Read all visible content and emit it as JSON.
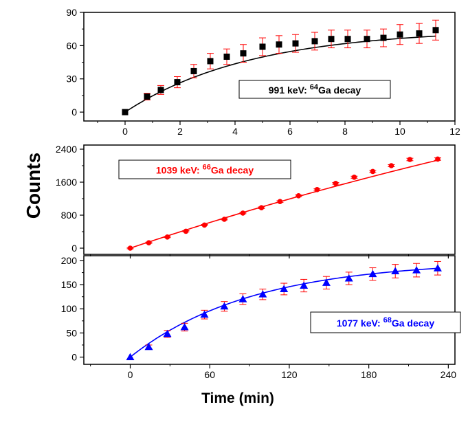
{
  "figure": {
    "ylabel": "Counts",
    "xlabel": "Time (min)"
  },
  "chart_data": [
    {
      "type": "scatter",
      "title": "",
      "legend": {
        "energy": "991 keV:",
        "mass": "64",
        "rest": "Ga decay",
        "color": "#000000",
        "placement": "middle-right"
      },
      "marker": "square",
      "marker_color": "#000000",
      "errorbar_color": "#ff0000",
      "fit_color": "#000000",
      "xlim": [
        -1.5,
        12
      ],
      "ylim": [
        -8,
        90
      ],
      "xticks": [
        0,
        2,
        4,
        6,
        8,
        10,
        12
      ],
      "yticks": [
        0,
        30,
        60,
        90
      ],
      "show_x_tick_labels": true,
      "series": [
        {
          "x": [
            0,
            0.8,
            1.3,
            1.9,
            2.5,
            3.1,
            3.7,
            4.3,
            5.0,
            5.6,
            6.2,
            6.9,
            7.5,
            8.1,
            8.8,
            9.4,
            10.0,
            10.7,
            11.3
          ],
          "y": [
            0,
            14,
            20,
            27,
            37,
            46,
            50,
            53,
            59,
            61,
            62,
            64,
            66,
            66,
            66,
            67,
            70,
            71,
            74
          ],
          "err": [
            0,
            3,
            4,
            5,
            6,
            7,
            7,
            8,
            8,
            8,
            8,
            8,
            8,
            8,
            8,
            8,
            9,
            9,
            9
          ]
        }
      ],
      "fit": {
        "A": 75,
        "tau": 4.6
      }
    },
    {
      "type": "scatter",
      "title": "",
      "legend": {
        "energy": "1039  keV:",
        "mass": "66",
        "rest": "Ga decay",
        "color": "#ff0000",
        "placement": "top-left"
      },
      "marker": "circle",
      "marker_color": "#ff0000",
      "errorbar_color": "#ff0000",
      "fit_color": "#ff0000",
      "xlim": [
        -35,
        245
      ],
      "ylim": [
        -150,
        2500
      ],
      "xticks": [
        0,
        60,
        120,
        180,
        240
      ],
      "yticks": [
        0,
        800,
        1600,
        2400
      ],
      "show_x_tick_labels": false,
      "series": [
        {
          "x": [
            0,
            14,
            28,
            42,
            56,
            71,
            85,
            99,
            113,
            127,
            141,
            155,
            169,
            183,
            197,
            211,
            232
          ],
          "y": [
            0,
            130,
            270,
            410,
            560,
            700,
            850,
            980,
            1130,
            1270,
            1420,
            1570,
            1720,
            1860,
            2000,
            2150,
            2160
          ],
          "err": [
            15,
            15,
            15,
            15,
            15,
            15,
            15,
            20,
            20,
            20,
            20,
            20,
            25,
            25,
            25,
            30,
            30
          ]
        }
      ],
      "fit": {
        "A": 7560,
        "tau": 700
      }
    },
    {
      "type": "scatter",
      "title": "",
      "legend": {
        "energy": "1077  keV:",
        "mass": "68",
        "rest": "Ga decay",
        "color": "#0000ff",
        "placement": "middle-right"
      },
      "marker": "triangle",
      "marker_color": "#0000ff",
      "errorbar_color": "#ff0000",
      "fit_color": "#0000ff",
      "xlim": [
        -35,
        245
      ],
      "ylim": [
        -15,
        210
      ],
      "xticks": [
        0,
        60,
        120,
        180,
        240
      ],
      "yticks": [
        0,
        50,
        100,
        150,
        200
      ],
      "show_x_tick_labels": true,
      "series": [
        {
          "x": [
            0,
            14,
            28,
            41,
            56,
            71,
            85,
            100,
            116,
            131,
            148,
            165,
            183,
            200,
            216,
            232
          ],
          "y": [
            0,
            21,
            48,
            62,
            88,
            105,
            120,
            130,
            141,
            148,
            154,
            163,
            172,
            178,
            180,
            184
          ],
          "err": [
            0,
            4,
            7,
            8,
            9,
            10,
            11,
            11,
            12,
            13,
            13,
            13,
            13,
            14,
            14,
            14
          ]
        }
      ],
      "fit": {
        "A": 200,
        "tau": 92
      }
    }
  ]
}
